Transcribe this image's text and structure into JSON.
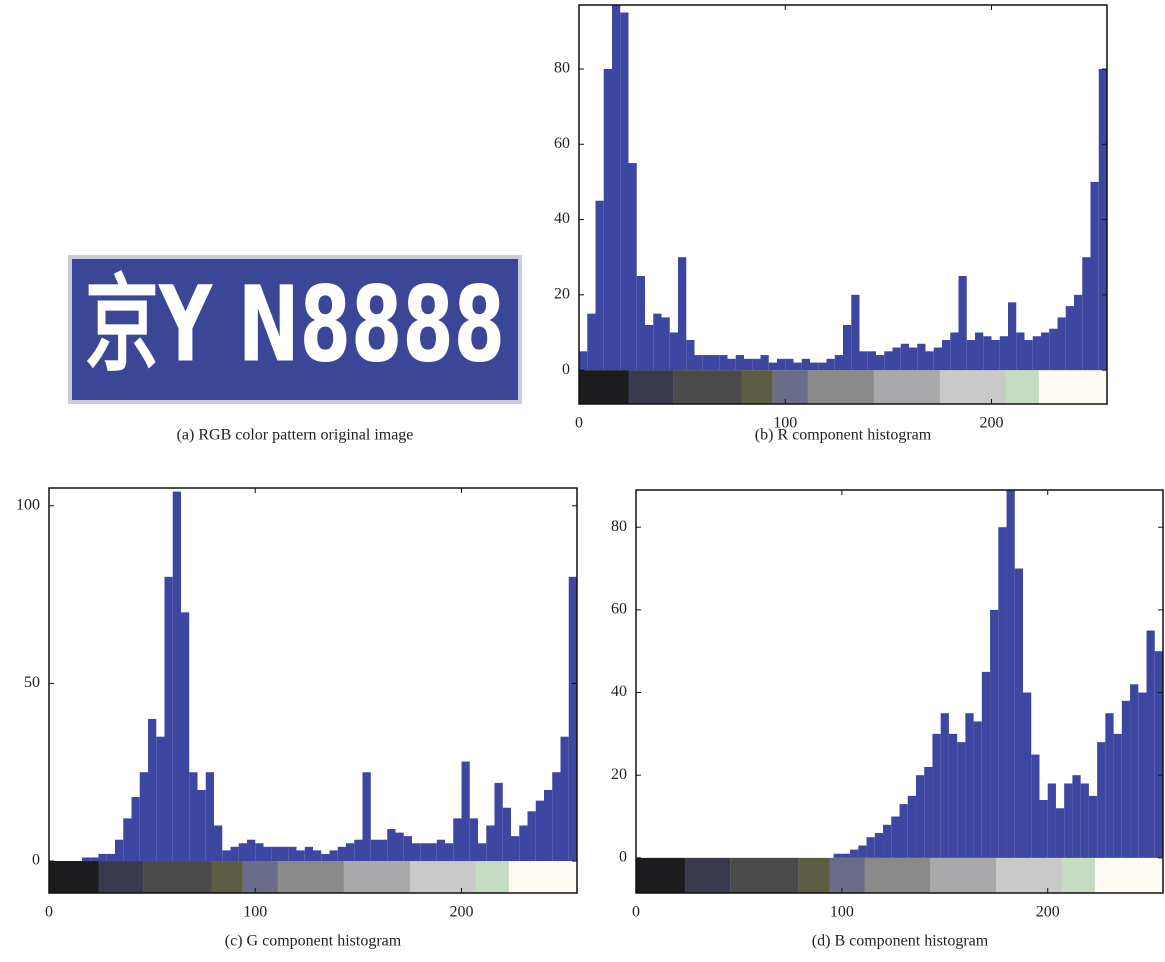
{
  "image": {
    "plate_text": "京Y N8888",
    "caption": "(a)  RGB color pattern original image"
  },
  "colorbar": {
    "edges": [
      0,
      24,
      46,
      79,
      94,
      111,
      143,
      175,
      207,
      223,
      256
    ],
    "colors": [
      "#1c1c1f",
      "#3a3a4f",
      "#4a4a4a",
      "#5d5d45",
      "#6b6b8a",
      "#8a8a8a",
      "#a9a9ab",
      "#c9c9c9",
      "#c6dcc2",
      "#fdfbf4"
    ]
  },
  "chart_data": [
    {
      "type": "histogram",
      "caption": "(b)  R component histogram",
      "color": "#3d46a0",
      "bins": [
        0,
        4,
        8,
        12,
        16,
        20,
        24,
        28,
        32,
        36,
        40,
        44,
        48,
        52,
        56,
        60,
        64,
        68,
        72,
        76,
        80,
        84,
        88,
        92,
        96,
        100,
        104,
        108,
        112,
        116,
        120,
        124,
        128,
        132,
        136,
        140,
        144,
        148,
        152,
        156,
        160,
        164,
        168,
        172,
        176,
        180,
        184,
        188,
        192,
        196,
        200,
        204,
        208,
        212,
        216,
        220,
        224,
        228,
        232,
        236,
        240,
        244,
        248,
        252,
        256
      ],
      "values": [
        5,
        15,
        45,
        80,
        97,
        95,
        55,
        25,
        12,
        15,
        14,
        10,
        30,
        8,
        4,
        4,
        4,
        4,
        3,
        4,
        3,
        3,
        4,
        2,
        3,
        3,
        2,
        3,
        2,
        2,
        3,
        4,
        12,
        20,
        5,
        5,
        4,
        5,
        6,
        7,
        6,
        7,
        5,
        6,
        8,
        10,
        25,
        8,
        10,
        9,
        8,
        9,
        18,
        10,
        8,
        9,
        10,
        11,
        14,
        17,
        20,
        30,
        50,
        80
      ],
      "xlim": [
        0,
        256
      ],
      "ylim": [
        -9,
        97
      ],
      "xticks": [
        0,
        100,
        200
      ],
      "yticks": [
        0,
        20,
        40,
        60,
        80
      ]
    },
    {
      "type": "histogram",
      "caption": "(c)  G component histogram",
      "color": "#3d46a0",
      "bins": [
        0,
        4,
        8,
        12,
        16,
        20,
        24,
        28,
        32,
        36,
        40,
        44,
        48,
        52,
        56,
        60,
        64,
        68,
        72,
        76,
        80,
        84,
        88,
        92,
        96,
        100,
        104,
        108,
        112,
        116,
        120,
        124,
        128,
        132,
        136,
        140,
        144,
        148,
        152,
        156,
        160,
        164,
        168,
        172,
        176,
        180,
        184,
        188,
        192,
        196,
        200,
        204,
        208,
        212,
        216,
        220,
        224,
        228,
        232,
        236,
        240,
        244,
        248,
        252,
        256
      ],
      "values": [
        0,
        0,
        0,
        0,
        1,
        1,
        2,
        2,
        6,
        12,
        18,
        25,
        40,
        35,
        80,
        104,
        70,
        25,
        20,
        25,
        10,
        3,
        4,
        5,
        6,
        5,
        4,
        4,
        4,
        4,
        3,
        4,
        3,
        2,
        3,
        4,
        5,
        6,
        25,
        6,
        6,
        9,
        8,
        7,
        5,
        5,
        5,
        6,
        5,
        12,
        28,
        12,
        5,
        10,
        22,
        15,
        7,
        10,
        14,
        17,
        20,
        25,
        35,
        80
      ],
      "xlim": [
        0,
        256
      ],
      "ylim": [
        -9,
        105
      ],
      "xticks": [
        0,
        100,
        200
      ],
      "yticks": [
        0,
        50,
        100
      ]
    },
    {
      "type": "histogram",
      "caption": "(d)  B component histogram",
      "color": "#3d46a0",
      "bins": [
        0,
        4,
        8,
        12,
        16,
        20,
        24,
        28,
        32,
        36,
        40,
        44,
        48,
        52,
        56,
        60,
        64,
        68,
        72,
        76,
        80,
        84,
        88,
        92,
        96,
        100,
        104,
        108,
        112,
        116,
        120,
        124,
        128,
        132,
        136,
        140,
        144,
        148,
        152,
        156,
        160,
        164,
        168,
        172,
        176,
        180,
        184,
        188,
        192,
        196,
        200,
        204,
        208,
        212,
        216,
        220,
        224,
        228,
        232,
        236,
        240,
        244,
        248,
        252,
        256
      ],
      "values": [
        0,
        0,
        0,
        0,
        0,
        0,
        0,
        0,
        0,
        0,
        0,
        0,
        0,
        0,
        0,
        0,
        0,
        0,
        0,
        0,
        0,
        0,
        0,
        0,
        1,
        1,
        2,
        3,
        5,
        6,
        8,
        10,
        13,
        15,
        20,
        22,
        30,
        35,
        30,
        28,
        35,
        33,
        45,
        60,
        80,
        89,
        70,
        40,
        25,
        14,
        18,
        12,
        18,
        20,
        18,
        15,
        28,
        35,
        30,
        38,
        42,
        40,
        55,
        50
      ],
      "xlim": [
        0,
        256
      ],
      "ylim": [
        -8.5,
        89
      ],
      "xticks": [
        0,
        100,
        200
      ],
      "yticks": [
        0,
        20,
        40,
        60,
        80
      ]
    }
  ]
}
